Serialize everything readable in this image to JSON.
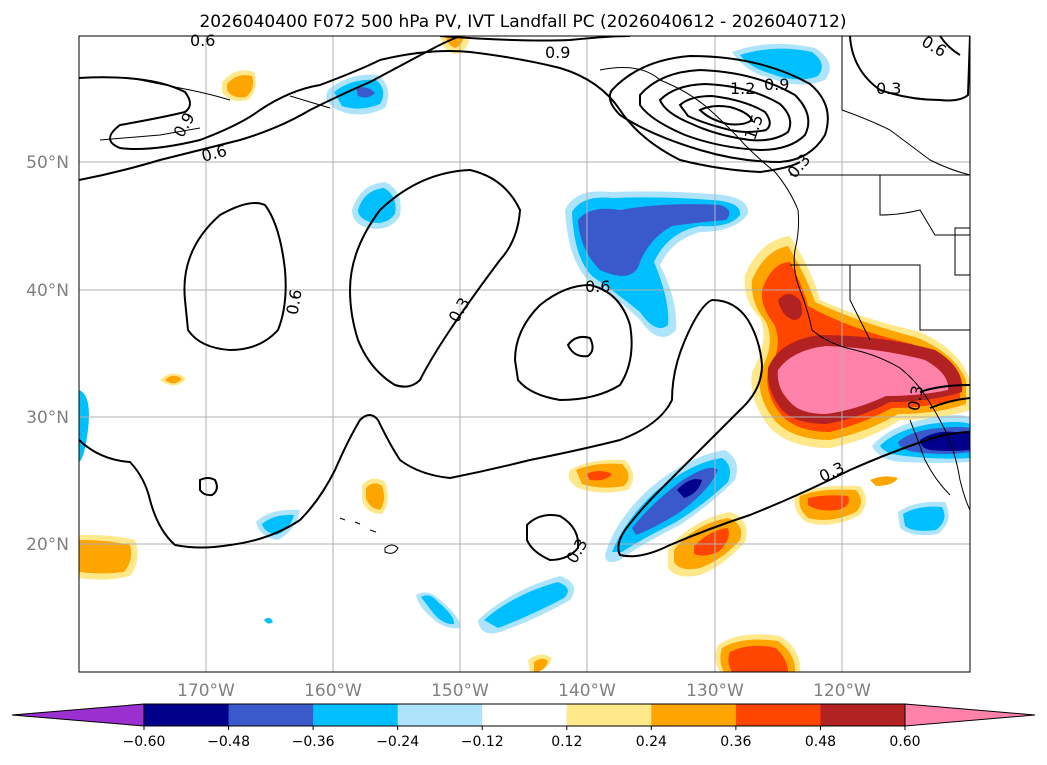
{
  "title": "2026040400 F072 500 hPa PV, IVT Landfall PC (2026040612 - 2026040712)",
  "lat_labels": [
    "50°N",
    "40°N",
    "30°N",
    "20°N"
  ],
  "lon_labels": [
    "170°W",
    "160°W",
    "150°W",
    "140°W",
    "130°W",
    "120°W"
  ],
  "colorbar": {
    "ticks": [
      "−0.60",
      "−0.48",
      "−0.36",
      "−0.24",
      "−0.12",
      "0.12",
      "0.24",
      "0.36",
      "0.48",
      "0.60"
    ],
    "colors": [
      "#9b30d0",
      "#00008b",
      "#3a5acb",
      "#00bfff",
      "#aee4fb",
      "#ffffff",
      "#ffe88a",
      "#ffa500",
      "#ff4500",
      "#b22222",
      "#ff82ab"
    ]
  },
  "contour_labels": [
    "0.6",
    "0.9",
    "0.6",
    "0.9",
    "0.6",
    "0.3",
    "0.6",
    "0.3",
    "0.3",
    "0.3",
    "1.2",
    "0.9",
    "0.3",
    "0.3",
    "0.6",
    "1.5"
  ],
  "map": {
    "lat_range": [
      10,
      60
    ],
    "lon_range": [
      -180,
      -110
    ],
    "field": "IVT Landfall PC",
    "contour_field": "500 hPa PV"
  }
}
